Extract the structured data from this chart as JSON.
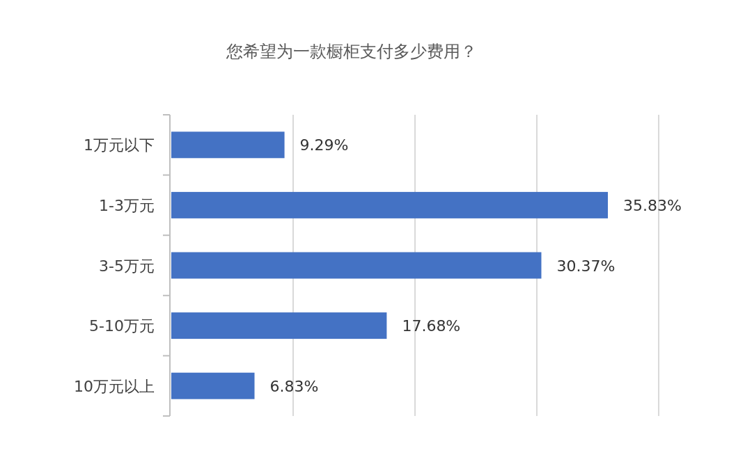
{
  "chart_data": {
    "type": "bar",
    "orientation": "horizontal",
    "title": "您希望为一款橱柜支付多少费用？",
    "categories": [
      "1万元以下",
      "1-3万元",
      "3-5万元",
      "5-10万元",
      "10万元以上"
    ],
    "values": [
      9.29,
      35.83,
      30.37,
      17.68,
      6.83
    ],
    "value_labels": [
      "9.29%",
      "35.83%",
      "30.37%",
      "17.68%",
      "6.83%"
    ],
    "color": "#4472c4",
    "xlim": [
      0,
      40
    ],
    "xticks": [
      {
        "value": 10,
        "label": null
      },
      {
        "value": 20,
        "label": null
      },
      {
        "value": 30,
        "label": null
      },
      {
        "value": 40,
        "label": null
      }
    ],
    "grid": "x",
    "tick_labels": "y"
  }
}
